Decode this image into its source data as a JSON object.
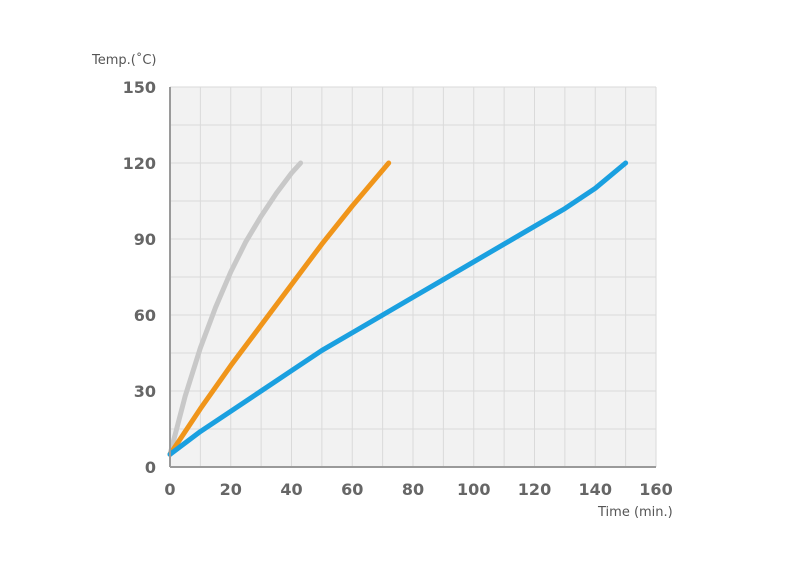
{
  "chart_data": {
    "type": "line",
    "title": "",
    "xlabel": "Time (min.)",
    "ylabel": "Temp.(˚C)",
    "xlim": [
      0,
      160
    ],
    "ylim": [
      0,
      150
    ],
    "x_ticks": [
      0,
      20,
      40,
      60,
      80,
      100,
      120,
      140,
      160
    ],
    "y_ticks": [
      0,
      30,
      60,
      90,
      120,
      150
    ],
    "grid": true,
    "legend": "none",
    "series": [
      {
        "name": "gray",
        "color": "#c8c8c8",
        "points": [
          [
            0,
            5
          ],
          [
            5,
            28
          ],
          [
            10,
            47
          ],
          [
            15,
            63
          ],
          [
            20,
            77
          ],
          [
            25,
            89
          ],
          [
            30,
            99
          ],
          [
            35,
            108
          ],
          [
            40,
            116
          ],
          [
            43,
            120
          ]
        ]
      },
      {
        "name": "orange",
        "color": "#f0951a",
        "points": [
          [
            0,
            5
          ],
          [
            10,
            23
          ],
          [
            20,
            40
          ],
          [
            30,
            56
          ],
          [
            40,
            72
          ],
          [
            50,
            88
          ],
          [
            60,
            103
          ],
          [
            72,
            120
          ]
        ]
      },
      {
        "name": "blue",
        "color": "#1aa0e0",
        "points": [
          [
            0,
            5
          ],
          [
            10,
            14
          ],
          [
            20,
            22
          ],
          [
            30,
            30
          ],
          [
            40,
            38
          ],
          [
            50,
            46
          ],
          [
            60,
            53
          ],
          [
            70,
            60
          ],
          [
            80,
            67
          ],
          [
            90,
            74
          ],
          [
            100,
            81
          ],
          [
            110,
            88
          ],
          [
            120,
            95
          ],
          [
            130,
            102
          ],
          [
            140,
            110
          ],
          [
            150,
            120
          ]
        ]
      }
    ]
  }
}
